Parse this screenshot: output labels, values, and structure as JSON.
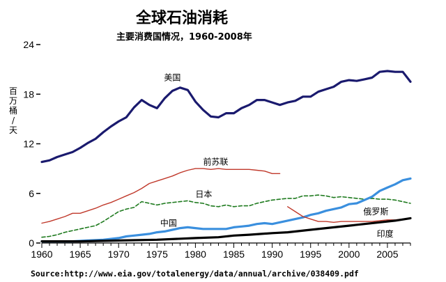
{
  "chart_data": {
    "type": "line",
    "title": "全球石油消耗",
    "subtitle": "主要消费国情况，1960-2008年",
    "ylabel": "百万桶/天",
    "xlabel": "",
    "xlim": [
      1960,
      2008
    ],
    "ylim": [
      0,
      24
    ],
    "xticks": [
      1960,
      1965,
      1970,
      1975,
      1980,
      1985,
      1990,
      1995,
      2000,
      2005
    ],
    "yticks": [
      0,
      6,
      12,
      18,
      24
    ],
    "grid": false,
    "source": "Source:http://www.eia.gov/totalenergy/data/annual/archive/038409.pdf",
    "series": [
      {
        "name": "美国",
        "color": "#1a1a6e",
        "style": "solid-thick",
        "x": [
          1960,
          1961,
          1962,
          1963,
          1964,
          1965,
          1966,
          1967,
          1968,
          1969,
          1970,
          1971,
          1972,
          1973,
          1974,
          1975,
          1976,
          1977,
          1978,
          1979,
          1980,
          1981,
          1982,
          1983,
          1984,
          1985,
          1986,
          1987,
          1988,
          1989,
          1990,
          1991,
          1992,
          1993,
          1994,
          1995,
          1996,
          1997,
          1998,
          1999,
          2000,
          2001,
          2002,
          2003,
          2004,
          2005,
          2006,
          2007,
          2008
        ],
        "values": [
          9.8,
          10.0,
          10.4,
          10.7,
          11.0,
          11.5,
          12.1,
          12.6,
          13.4,
          14.1,
          14.7,
          15.2,
          16.4,
          17.3,
          16.7,
          16.3,
          17.5,
          18.4,
          18.8,
          18.5,
          17.1,
          16.1,
          15.3,
          15.2,
          15.7,
          15.7,
          16.3,
          16.7,
          17.3,
          17.3,
          17.0,
          16.7,
          17.0,
          17.2,
          17.7,
          17.7,
          18.3,
          18.6,
          18.9,
          19.5,
          19.7,
          19.6,
          19.8,
          20.0,
          20.7,
          20.8,
          20.7,
          20.7,
          19.5
        ]
      },
      {
        "name": "前苏联",
        "color": "#c0392b",
        "style": "solid-thin",
        "x": [
          1960,
          1961,
          1962,
          1963,
          1964,
          1965,
          1966,
          1967,
          1968,
          1969,
          1970,
          1971,
          1972,
          1973,
          1974,
          1975,
          1976,
          1977,
          1978,
          1979,
          1980,
          1981,
          1982,
          1983,
          1984,
          1985,
          1986,
          1987,
          1988,
          1989,
          1990,
          1991
        ],
        "values": [
          2.4,
          2.6,
          2.9,
          3.2,
          3.6,
          3.6,
          3.9,
          4.2,
          4.6,
          4.9,
          5.3,
          5.7,
          6.1,
          6.6,
          7.2,
          7.5,
          7.8,
          8.1,
          8.5,
          8.8,
          9.0,
          9.0,
          8.9,
          9.0,
          8.9,
          8.9,
          8.9,
          8.9,
          8.8,
          8.7,
          8.4,
          8.4
        ]
      },
      {
        "name": "日本",
        "color": "#1e7a1e",
        "style": "dashed",
        "x": [
          1960,
          1961,
          1962,
          1963,
          1964,
          1965,
          1966,
          1967,
          1968,
          1969,
          1970,
          1971,
          1972,
          1973,
          1974,
          1975,
          1976,
          1977,
          1978,
          1979,
          1980,
          1981,
          1982,
          1983,
          1984,
          1985,
          1986,
          1987,
          1988,
          1989,
          1990,
          1991,
          1992,
          1993,
          1994,
          1995,
          1996,
          1997,
          1998,
          1999,
          2000,
          2001,
          2002,
          2003,
          2004,
          2005,
          2006,
          2007,
          2008
        ],
        "values": [
          0.7,
          0.8,
          1.0,
          1.3,
          1.5,
          1.7,
          1.9,
          2.1,
          2.6,
          3.2,
          3.8,
          4.1,
          4.3,
          5.0,
          4.8,
          4.6,
          4.8,
          4.9,
          5.0,
          5.1,
          4.9,
          4.8,
          4.5,
          4.4,
          4.6,
          4.4,
          4.5,
          4.5,
          4.8,
          5.0,
          5.2,
          5.3,
          5.4,
          5.4,
          5.7,
          5.7,
          5.8,
          5.7,
          5.5,
          5.6,
          5.5,
          5.4,
          5.3,
          5.4,
          5.3,
          5.3,
          5.2,
          5.0,
          4.8
        ]
      },
      {
        "name": "中国",
        "color": "#3a8fde",
        "style": "solid-thick",
        "x": [
          1960,
          1962,
          1964,
          1966,
          1968,
          1970,
          1971,
          1972,
          1973,
          1974,
          1975,
          1976,
          1977,
          1978,
          1979,
          1980,
          1981,
          1982,
          1983,
          1984,
          1985,
          1986,
          1987,
          1988,
          1989,
          1990,
          1991,
          1992,
          1993,
          1994,
          1995,
          1996,
          1997,
          1998,
          1999,
          2000,
          2001,
          2002,
          2003,
          2004,
          2005,
          2006,
          2007,
          2008
        ],
        "values": [
          0.2,
          0.2,
          0.2,
          0.3,
          0.4,
          0.6,
          0.8,
          0.9,
          1.0,
          1.1,
          1.3,
          1.4,
          1.6,
          1.8,
          1.9,
          1.8,
          1.7,
          1.7,
          1.7,
          1.7,
          1.9,
          2.0,
          2.1,
          2.3,
          2.4,
          2.3,
          2.5,
          2.7,
          2.9,
          3.1,
          3.4,
          3.6,
          3.9,
          4.1,
          4.3,
          4.7,
          4.8,
          5.2,
          5.6,
          6.3,
          6.7,
          7.1,
          7.6,
          7.8
        ]
      },
      {
        "name": "俄罗斯",
        "color": "#c0392b",
        "style": "solid-thin",
        "x": [
          1992,
          1993,
          1994,
          1995,
          1996,
          1997,
          1998,
          1999,
          2000,
          2001,
          2002,
          2003,
          2004,
          2005,
          2006,
          2007,
          2008
        ],
        "values": [
          4.4,
          3.8,
          3.2,
          2.9,
          2.6,
          2.6,
          2.5,
          2.6,
          2.6,
          2.6,
          2.6,
          2.6,
          2.7,
          2.8,
          2.8,
          2.9,
          3.0
        ]
      },
      {
        "name": "印度",
        "color": "#000000",
        "style": "solid-thick",
        "x": [
          1960,
          1965,
          1970,
          1975,
          1980,
          1983,
          1985,
          1987,
          1990,
          1992,
          1995,
          1997,
          2000,
          2002,
          2004,
          2006,
          2008
        ],
        "values": [
          0.2,
          0.2,
          0.3,
          0.4,
          0.6,
          0.7,
          0.9,
          1.0,
          1.2,
          1.3,
          1.6,
          1.8,
          2.1,
          2.3,
          2.5,
          2.7,
          3.0
        ]
      }
    ]
  }
}
